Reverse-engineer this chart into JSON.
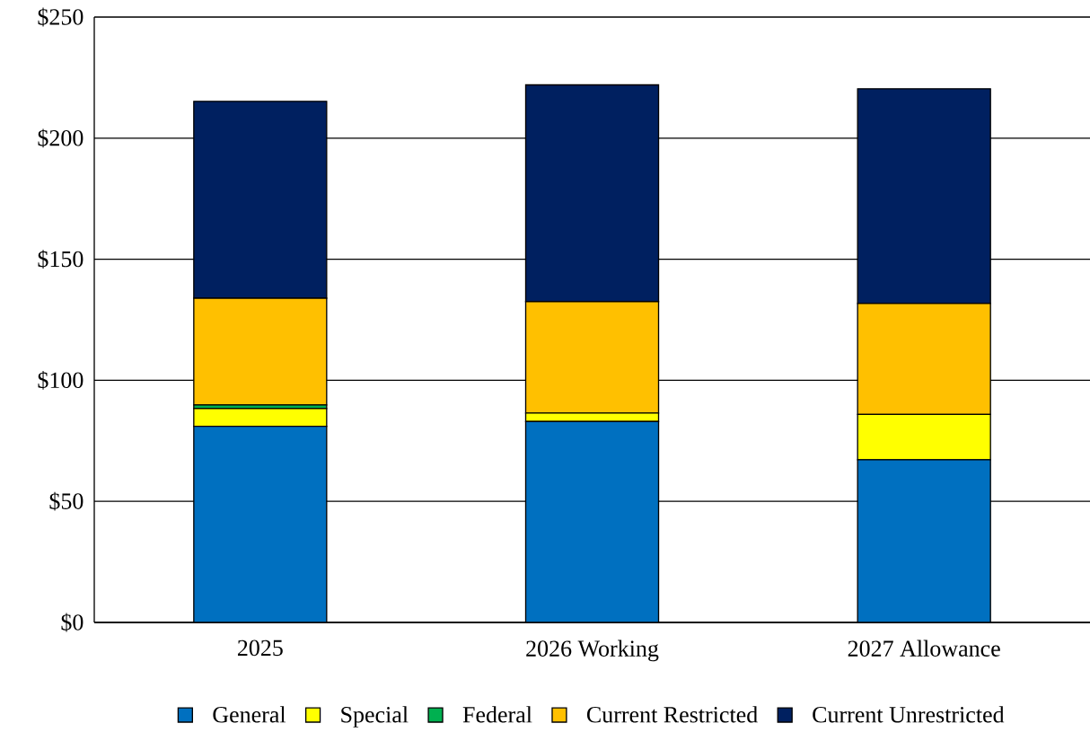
{
  "chart_data": {
    "type": "bar",
    "stacked": true,
    "categories": [
      "2025",
      "2026 Working",
      "2027 Allowance"
    ],
    "series": [
      {
        "name": "General",
        "color": "#0070c0",
        "values": [
          81,
          83,
          67.2
        ]
      },
      {
        "name": "Special",
        "color": "#ffff00",
        "values": [
          7.3,
          3.5,
          18.7
        ]
      },
      {
        "name": "Federal",
        "color": "#00b050",
        "values": [
          1.5,
          0,
          0
        ]
      },
      {
        "name": "Current Restricted",
        "color": "#ffc000",
        "values": [
          44.1,
          46,
          45.8
        ]
      },
      {
        "name": "Current Unrestricted",
        "color": "#002060",
        "values": [
          81.3,
          89.5,
          88.7
        ]
      }
    ],
    "ylim": [
      0,
      250
    ],
    "yticks": [
      {
        "value": 0,
        "label": "$0"
      },
      {
        "value": 50,
        "label": "$50"
      },
      {
        "value": 100,
        "label": "$100"
      },
      {
        "value": 150,
        "label": "$150"
      },
      {
        "value": 200,
        "label": "$200"
      },
      {
        "value": 250,
        "label": "$250"
      }
    ],
    "grid": "y",
    "legend": "bottom"
  }
}
